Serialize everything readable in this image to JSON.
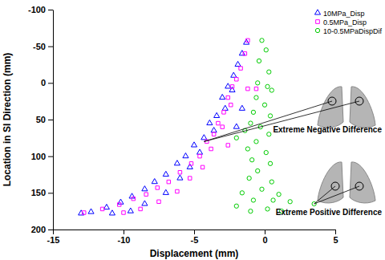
{
  "chart_data": {
    "type": "scatter",
    "x_label": "Displacement (mm)",
    "y_label": "Location in SI Direction (mm)",
    "xlim": [
      -15,
      5
    ],
    "xticks": [
      -15,
      -10,
      -5,
      0,
      5
    ],
    "ylim": [
      -100,
      200
    ],
    "yticks": [
      -100,
      -50,
      0,
      50,
      100,
      150,
      200
    ],
    "grid": false,
    "legend": "upper right",
    "series": [
      {
        "name": "10MPa_Disp",
        "color": "#0000ff",
        "marker": "triangle",
        "x": [
          -1.3,
          -1.6,
          -1.9,
          -2.2,
          -2.6,
          -2.3,
          -3.0,
          -2.8,
          -3.4,
          -3.9,
          -3.6,
          -4.3,
          -5.0,
          -4.6,
          -5.6,
          -6.2,
          -5.3,
          -7.0,
          -6.0,
          -7.8,
          -8.5,
          -7.0,
          -9.4,
          -10.2,
          -8.5,
          -11.2,
          -12.3,
          -9.5,
          -13.0,
          -10.8,
          -2.0,
          -1.6
        ],
        "values": [
          -55,
          -40,
          -25,
          -10,
          5,
          10,
          20,
          35,
          45,
          55,
          65,
          75,
          85,
          95,
          100,
          110,
          115,
          125,
          130,
          135,
          145,
          150,
          155,
          163,
          165,
          170,
          176,
          175,
          178,
          178,
          60,
          35
        ]
      },
      {
        "name": "0.5MPa_Disp",
        "color": "#ff00ff",
        "marker": "square",
        "x": [
          -1.2,
          -1.4,
          -1.7,
          -2.0,
          -2.3,
          -0.6,
          -1.2,
          -2.6,
          -2.4,
          -2.9,
          -3.3,
          -3.0,
          -3.6,
          -4.1,
          -3.8,
          -4.6,
          -5.2,
          -4.4,
          -6.0,
          -5.3,
          -6.8,
          -7.6,
          -6.2,
          -8.4,
          -9.3,
          -7.5,
          -10.3,
          -11.5,
          -8.8,
          -12.8,
          -10.0,
          -2.6
        ],
        "values": [
          -58,
          -40,
          -20,
          -5,
          5,
          8,
          8,
          20,
          30,
          40,
          55,
          60,
          70,
          80,
          90,
          100,
          110,
          115,
          122,
          130,
          135,
          143,
          148,
          152,
          158,
          162,
          166,
          172,
          172,
          177,
          177,
          85
        ]
      },
      {
        "name": "10-0.5MPaDispDif",
        "color": "#00cc00",
        "marker": "circle",
        "x": [
          -0.2,
          0.1,
          -0.4,
          0.3,
          -0.5,
          0.2,
          0.5,
          -0.6,
          0.0,
          -0.8,
          0.4,
          -1.0,
          -0.3,
          -1.4,
          0.3,
          -2.0,
          -0.6,
          -1.2,
          0.1,
          -0.9,
          0.4,
          -0.5,
          -1.1,
          0.5,
          -0.2,
          -1.6,
          1.0,
          -0.8,
          0.6,
          1.8,
          3.5,
          -2.0,
          0.2,
          -1.0,
          1.2
        ],
        "values": [
          -58,
          -45,
          -30,
          -15,
          0,
          5,
          10,
          20,
          30,
          40,
          45,
          55,
          60,
          65,
          70,
          75,
          80,
          90,
          95,
          105,
          110,
          120,
          130,
          135,
          145,
          150,
          152,
          160,
          160,
          162,
          165,
          168,
          172,
          175,
          175
        ]
      }
    ],
    "annotations": [
      {
        "text": "Extreme Negative Difference",
        "x": -4.3,
        "y": 80
      },
      {
        "text": "Extreme Positive Difference",
        "x": 3.5,
        "y": 165
      }
    ]
  }
}
